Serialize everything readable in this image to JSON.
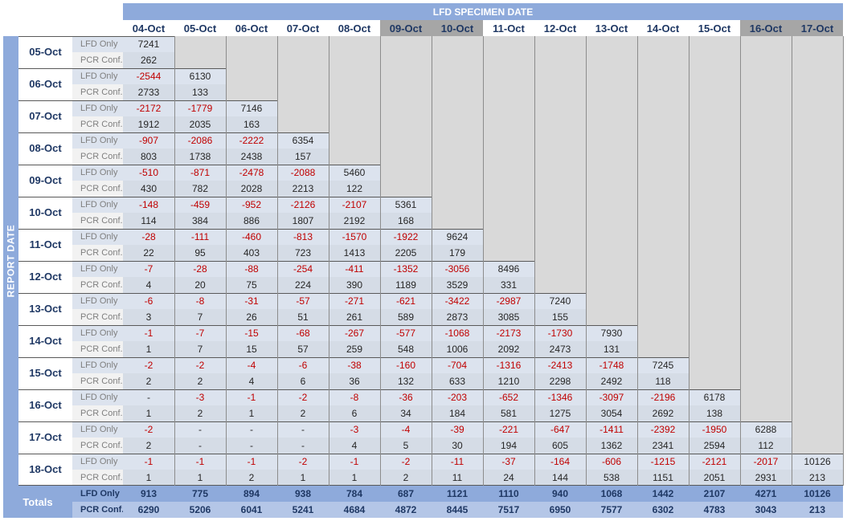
{
  "chart_data": {
    "type": "table",
    "title": "LFD SPECIMEN DATE",
    "row_axis_label": "REPORT DATE",
    "specimen_dates": [
      "04-Oct",
      "05-Oct",
      "06-Oct",
      "07-Oct",
      "08-Oct",
      "09-Oct",
      "10-Oct",
      "11-Oct",
      "12-Oct",
      "13-Oct",
      "14-Oct",
      "15-Oct",
      "16-Oct",
      "17-Oct"
    ],
    "weekend_specimen_dates": [
      "09-Oct",
      "10-Oct",
      "16-Oct",
      "17-Oct"
    ],
    "row_labels": {
      "lfd": "LFD Only",
      "pcr": "PCR Conf."
    },
    "rows": [
      {
        "report_date": "05-Oct",
        "lfd": [
          "7241"
        ],
        "pcr": [
          "262"
        ]
      },
      {
        "report_date": "06-Oct",
        "lfd": [
          "-2544",
          "6130"
        ],
        "pcr": [
          "2733",
          "133"
        ]
      },
      {
        "report_date": "07-Oct",
        "lfd": [
          "-2172",
          "-1779",
          "7146"
        ],
        "pcr": [
          "1912",
          "2035",
          "163"
        ]
      },
      {
        "report_date": "08-Oct",
        "lfd": [
          "-907",
          "-2086",
          "-2222",
          "6354"
        ],
        "pcr": [
          "803",
          "1738",
          "2438",
          "157"
        ]
      },
      {
        "report_date": "09-Oct",
        "lfd": [
          "-510",
          "-871",
          "-2478",
          "-2088",
          "5460"
        ],
        "pcr": [
          "430",
          "782",
          "2028",
          "2213",
          "122"
        ]
      },
      {
        "report_date": "10-Oct",
        "lfd": [
          "-148",
          "-459",
          "-952",
          "-2126",
          "-2107",
          "5361"
        ],
        "pcr": [
          "114",
          "384",
          "886",
          "1807",
          "2192",
          "168"
        ]
      },
      {
        "report_date": "11-Oct",
        "lfd": [
          "-28",
          "-111",
          "-460",
          "-813",
          "-1570",
          "-1922",
          "9624"
        ],
        "pcr": [
          "22",
          "95",
          "403",
          "723",
          "1413",
          "2205",
          "179"
        ]
      },
      {
        "report_date": "12-Oct",
        "lfd": [
          "-7",
          "-28",
          "-88",
          "-254",
          "-411",
          "-1352",
          "-3056",
          "8496"
        ],
        "pcr": [
          "4",
          "20",
          "75",
          "224",
          "390",
          "1189",
          "3529",
          "331"
        ]
      },
      {
        "report_date": "13-Oct",
        "lfd": [
          "-6",
          "-8",
          "-31",
          "-57",
          "-271",
          "-621",
          "-3422",
          "-2987",
          "7240"
        ],
        "pcr": [
          "3",
          "7",
          "26",
          "51",
          "261",
          "589",
          "2873",
          "3085",
          "155"
        ]
      },
      {
        "report_date": "14-Oct",
        "lfd": [
          "-1",
          "-7",
          "-15",
          "-68",
          "-267",
          "-577",
          "-1068",
          "-2173",
          "-1730",
          "7930"
        ],
        "pcr": [
          "1",
          "7",
          "15",
          "57",
          "259",
          "548",
          "1006",
          "2092",
          "2473",
          "131"
        ]
      },
      {
        "report_date": "15-Oct",
        "lfd": [
          "-2",
          "-2",
          "-4",
          "-6",
          "-38",
          "-160",
          "-704",
          "-1316",
          "-2413",
          "-1748",
          "7245"
        ],
        "pcr": [
          "2",
          "2",
          "4",
          "6",
          "36",
          "132",
          "633",
          "1210",
          "2298",
          "2492",
          "118"
        ]
      },
      {
        "report_date": "16-Oct",
        "lfd": [
          "-",
          "-3",
          "-1",
          "-2",
          "-8",
          "-36",
          "-203",
          "-652",
          "-1346",
          "-3097",
          "-2196",
          "6178"
        ],
        "pcr": [
          "1",
          "2",
          "1",
          "2",
          "6",
          "34",
          "184",
          "581",
          "1275",
          "3054",
          "2692",
          "138"
        ]
      },
      {
        "report_date": "17-Oct",
        "lfd": [
          "-2",
          "-",
          "-",
          "-",
          "-3",
          "-4",
          "-39",
          "-221",
          "-647",
          "-1411",
          "-2392",
          "-1950",
          "6288"
        ],
        "pcr": [
          "2",
          "-",
          "-",
          "-",
          "4",
          "5",
          "30",
          "194",
          "605",
          "1362",
          "2341",
          "2594",
          "112"
        ]
      },
      {
        "report_date": "18-Oct",
        "lfd": [
          "-1",
          "-1",
          "-1",
          "-2",
          "-1",
          "-2",
          "-11",
          "-37",
          "-164",
          "-606",
          "-1215",
          "-2121",
          "-2017",
          "10126"
        ],
        "pcr": [
          "1",
          "1",
          "2",
          "1",
          "1",
          "2",
          "11",
          "24",
          "144",
          "538",
          "1151",
          "2051",
          "2931",
          "213"
        ]
      }
    ],
    "totals": {
      "label": "Totals",
      "lfd": [
        "913",
        "775",
        "894",
        "938",
        "784",
        "687",
        "1121",
        "1110",
        "940",
        "1068",
        "1442",
        "2107",
        "4271",
        "10126"
      ],
      "pcr": [
        "6290",
        "5206",
        "6041",
        "5241",
        "4684",
        "4872",
        "8445",
        "7517",
        "6950",
        "7577",
        "6302",
        "4783",
        "3043",
        "213"
      ]
    },
    "colors": {
      "header_blue": "#8eaadb",
      "weekend_header": "#a6a6a6",
      "negative_red": "#c00000",
      "empty_grey": "#d9d9d9",
      "lfd_row_bg": "#dce3ee",
      "pcr_row_bg": "#d5dce6"
    }
  }
}
